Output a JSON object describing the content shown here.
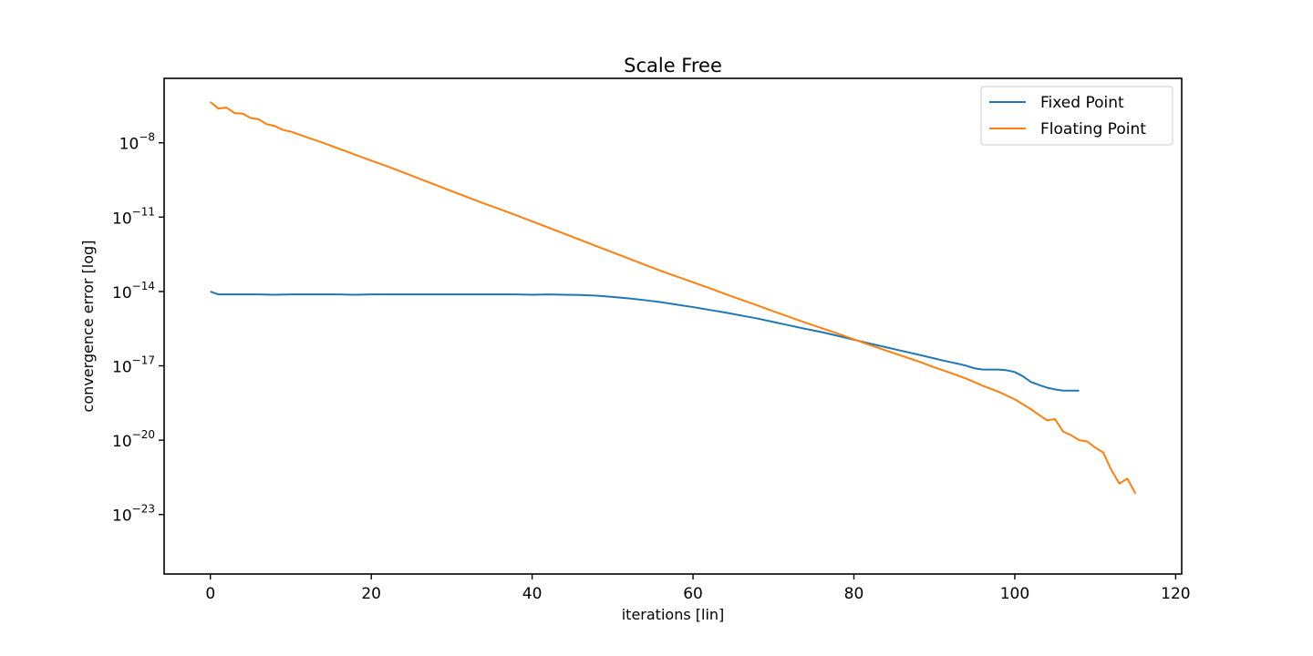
{
  "chart_data": {
    "type": "line",
    "title": "Scale Free",
    "xlabel": "iterations [lin]",
    "ylabel": "convergence error [log]",
    "xlim": [
      -5.75,
      120.75
    ],
    "ylim_log10": [
      -25.4,
      -5.4
    ],
    "yscale": "log",
    "grid": false,
    "legend_placement": "top-right",
    "x_ticks": [
      0,
      20,
      40,
      60,
      80,
      100,
      120
    ],
    "x_tick_labels": [
      "0",
      "20",
      "40",
      "60",
      "80",
      "100",
      "120"
    ],
    "y_ticks_log10": [
      -8,
      -11,
      -14,
      -17,
      -20,
      -23
    ],
    "y_tick_labels": [
      {
        "base": "10",
        "exp": "−8"
      },
      {
        "base": "10",
        "exp": "−11"
      },
      {
        "base": "10",
        "exp": "−14"
      },
      {
        "base": "10",
        "exp": "−17"
      },
      {
        "base": "10",
        "exp": "−20"
      },
      {
        "base": "10",
        "exp": "−23"
      }
    ],
    "series": [
      {
        "name": "Fixed Point",
        "color": "#1f77b4",
        "x": [
          0,
          1,
          2,
          4,
          6,
          8,
          10,
          12,
          14,
          16,
          18,
          20,
          22,
          24,
          26,
          28,
          30,
          32,
          34,
          36,
          38,
          40,
          42,
          44,
          46,
          48,
          50,
          52,
          54,
          56,
          58,
          60,
          62,
          64,
          66,
          68,
          70,
          72,
          74,
          76,
          78,
          80,
          82,
          84,
          86,
          88,
          90,
          91,
          92,
          93,
          94,
          95,
          96,
          97,
          98,
          99,
          100,
          101,
          102,
          103,
          104,
          105,
          106,
          107,
          108
        ],
        "log10_y": [
          -14.0,
          -14.12,
          -14.12,
          -14.12,
          -14.12,
          -14.13,
          -14.12,
          -14.12,
          -14.12,
          -14.12,
          -14.13,
          -14.12,
          -14.12,
          -14.12,
          -14.12,
          -14.12,
          -14.12,
          -14.12,
          -14.12,
          -14.12,
          -14.12,
          -14.13,
          -14.12,
          -14.13,
          -14.14,
          -14.17,
          -14.22,
          -14.28,
          -14.35,
          -14.43,
          -14.53,
          -14.63,
          -14.74,
          -14.85,
          -14.97,
          -15.09,
          -15.23,
          -15.37,
          -15.51,
          -15.64,
          -15.79,
          -15.95,
          -16.1,
          -16.25,
          -16.4,
          -16.55,
          -16.7,
          -16.78,
          -16.85,
          -16.92,
          -17.0,
          -17.1,
          -17.15,
          -17.15,
          -17.15,
          -17.18,
          -17.25,
          -17.42,
          -17.65,
          -17.77,
          -17.88,
          -17.95,
          -18.0,
          -18.0,
          -18.0
        ]
      },
      {
        "name": "Floating Point",
        "color": "#ff7f0e",
        "x": [
          0,
          1,
          2,
          3,
          4,
          5,
          6,
          7,
          8,
          9,
          10,
          12,
          14,
          16,
          18,
          20,
          22,
          24,
          26,
          28,
          30,
          32,
          34,
          36,
          38,
          40,
          42,
          44,
          46,
          48,
          50,
          52,
          54,
          56,
          58,
          60,
          62,
          64,
          66,
          68,
          70,
          72,
          74,
          76,
          78,
          80,
          82,
          84,
          86,
          88,
          90,
          92,
          94,
          96,
          98,
          100,
          102,
          104,
          105,
          106,
          107,
          108,
          109,
          110,
          111,
          112,
          113,
          114,
          115
        ],
        "log10_y": [
          -6.35,
          -6.62,
          -6.58,
          -6.8,
          -6.82,
          -7.0,
          -7.05,
          -7.25,
          -7.32,
          -7.48,
          -7.55,
          -7.78,
          -8.0,
          -8.24,
          -8.48,
          -8.72,
          -8.95,
          -9.2,
          -9.45,
          -9.7,
          -9.95,
          -10.2,
          -10.45,
          -10.68,
          -10.92,
          -11.17,
          -11.42,
          -11.67,
          -11.92,
          -12.17,
          -12.42,
          -12.67,
          -12.92,
          -13.17,
          -13.4,
          -13.63,
          -13.86,
          -14.1,
          -14.33,
          -14.56,
          -14.8,
          -15.03,
          -15.26,
          -15.48,
          -15.7,
          -15.93,
          -16.16,
          -16.38,
          -16.6,
          -16.82,
          -17.06,
          -17.28,
          -17.52,
          -17.8,
          -18.05,
          -18.35,
          -18.75,
          -19.2,
          -19.15,
          -19.65,
          -19.8,
          -20.0,
          -20.05,
          -20.3,
          -20.5,
          -21.2,
          -21.75,
          -21.55,
          -22.15
        ]
      }
    ]
  }
}
